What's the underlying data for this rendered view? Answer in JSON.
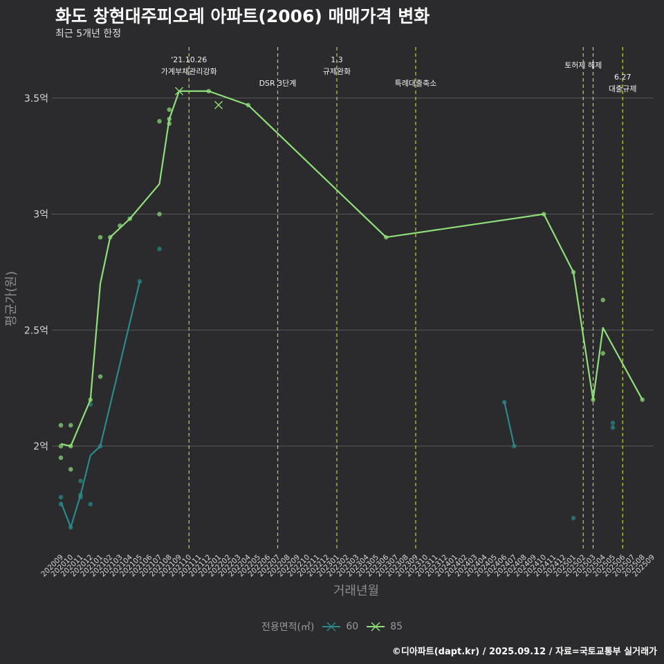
{
  "title": "화도 창현대주피오레 아파트(2006) 매매가격 변화",
  "subtitle": "최근 5개년 한정",
  "caption": "©디아파트(dapt.kr) / 2025.09.12 / 자료=국토교통부 실거래가",
  "legend": {
    "title": "전용면적(㎡)",
    "items": [
      {
        "label": "60",
        "color": "#2a8a8c"
      },
      {
        "label": "85",
        "color": "#8fe07a"
      }
    ]
  },
  "colors": {
    "background": "#2b2a2c",
    "grid": "#5a5a5a",
    "event_line": "#c8d23a",
    "series_60": "#2a8a8c",
    "series_85": "#8fe07a"
  },
  "chart_data": {
    "type": "line",
    "title": "화도 창현대주피오레 아파트(2006) 매매가격 변화",
    "xlabel": "거래년월",
    "ylabel": "평균가(원)",
    "ylim": [
      1.55,
      3.72
    ],
    "yticks": [
      {
        "value": 2.0,
        "label": "2억"
      },
      {
        "value": 2.5,
        "label": "2.5억"
      },
      {
        "value": 3.0,
        "label": "3억"
      },
      {
        "value": 3.5,
        "label": "3.5억"
      }
    ],
    "categories": [
      "202009",
      "202010",
      "202011",
      "202012",
      "202101",
      "202102",
      "202103",
      "202104",
      "202105",
      "202106",
      "202107",
      "202108",
      "202109",
      "202110",
      "202111",
      "202112",
      "202201",
      "202202",
      "202203",
      "202204",
      "202205",
      "202206",
      "202207",
      "202208",
      "202209",
      "202210",
      "202211",
      "202212",
      "202301",
      "202302",
      "202303",
      "202304",
      "202305",
      "202306",
      "202307",
      "202308",
      "202309",
      "202310",
      "202311",
      "202312",
      "202401",
      "202402",
      "202403",
      "202404",
      "202405",
      "202406",
      "202407",
      "202408",
      "202409",
      "202410",
      "202411",
      "202412",
      "202501",
      "202502",
      "202503",
      "202504",
      "202505",
      "202506",
      "202507",
      "202508",
      "202509"
    ],
    "series": [
      {
        "name": "60",
        "lines": [
          {
            "x": [
              "202009",
              "202010",
              "202011",
              "202012",
              "202101",
              "202105"
            ],
            "y": [
              1.76,
              1.65,
              1.79,
              1.96,
              2.0,
              2.71
            ]
          },
          {
            "x": [
              "202406",
              "202407"
            ],
            "y": [
              2.19,
              2.0
            ]
          }
        ],
        "points": [
          {
            "x": "202009",
            "y": 1.78
          },
          {
            "x": "202009",
            "y": 1.75
          },
          {
            "x": "202010",
            "y": 1.65
          },
          {
            "x": "202011",
            "y": 1.85
          },
          {
            "x": "202011",
            "y": 1.79
          },
          {
            "x": "202011",
            "y": 1.78
          },
          {
            "x": "202012",
            "y": 1.75
          },
          {
            "x": "202012",
            "y": 2.18
          },
          {
            "x": "202101",
            "y": 2.0
          },
          {
            "x": "202105",
            "y": 2.71
          },
          {
            "x": "202107",
            "y": 2.85
          },
          {
            "x": "202406",
            "y": 2.19
          },
          {
            "x": "202407",
            "y": 2.0
          },
          {
            "x": "202501",
            "y": 1.69
          },
          {
            "x": "202505",
            "y": 2.1
          },
          {
            "x": "202505",
            "y": 2.08
          }
        ]
      },
      {
        "name": "85",
        "lines": [
          {
            "x": [
              "202009",
              "202010",
              "202012",
              "202101",
              "202102",
              "202104",
              "202107",
              "202108",
              "202109",
              "202112",
              "202204",
              "202306",
              "202410",
              "202501",
              "202503",
              "202504",
              "202508"
            ],
            "y": [
              2.01,
              2.0,
              2.2,
              2.7,
              2.9,
              2.98,
              3.13,
              3.41,
              3.53,
              3.53,
              3.47,
              2.9,
              3.0,
              2.75,
              2.2,
              2.51,
              2.2
            ]
          }
        ],
        "points": [
          {
            "x": "202009",
            "y": 2.09
          },
          {
            "x": "202009",
            "y": 2.0
          },
          {
            "x": "202009",
            "y": 1.95
          },
          {
            "x": "202010",
            "y": 2.09
          },
          {
            "x": "202010",
            "y": 1.9
          },
          {
            "x": "202010",
            "y": 2.0
          },
          {
            "x": "202012",
            "y": 2.2
          },
          {
            "x": "202101",
            "y": 2.9
          },
          {
            "x": "202101",
            "y": 2.3
          },
          {
            "x": "202102",
            "y": 2.9
          },
          {
            "x": "202103",
            "y": 2.95
          },
          {
            "x": "202104",
            "y": 2.98
          },
          {
            "x": "202107",
            "y": 3.4
          },
          {
            "x": "202107",
            "y": 3.0
          },
          {
            "x": "202108",
            "y": 3.45
          },
          {
            "x": "202108",
            "y": 3.39
          },
          {
            "x": "202108",
            "y": 3.41
          },
          {
            "x": "202112",
            "y": 3.53
          },
          {
            "x": "202204",
            "y": 3.47
          },
          {
            "x": "202306",
            "y": 2.9
          },
          {
            "x": "202410",
            "y": 3.0
          },
          {
            "x": "202501",
            "y": 2.75
          },
          {
            "x": "202503",
            "y": 2.2
          },
          {
            "x": "202504",
            "y": 2.63
          },
          {
            "x": "202504",
            "y": 2.4
          },
          {
            "x": "202508",
            "y": 2.2
          }
        ],
        "cross_markers": [
          {
            "x": "202109",
            "y": 3.53
          },
          {
            "x": "202201",
            "y": 3.47
          }
        ]
      }
    ],
    "events": [
      {
        "x": "202110",
        "lines": [
          "'21.10.26",
          "가계부채관리강화"
        ],
        "level": 0
      },
      {
        "x": "202207",
        "lines": [
          "DSR 3단계"
        ],
        "level": 2
      },
      {
        "x": "202301",
        "lines": [
          "1.3",
          "규제완화"
        ],
        "level": 0
      },
      {
        "x": "202309",
        "lines": [
          "특례대출축소"
        ],
        "level": 2
      },
      {
        "x": "202502",
        "lines": [
          "토허제 해제"
        ],
        "level": 1
      },
      {
        "x": "202503",
        "lines": [],
        "level": 0
      },
      {
        "x": "202506",
        "lines": [
          "6.27",
          "대출규제"
        ],
        "level": 3
      }
    ]
  }
}
